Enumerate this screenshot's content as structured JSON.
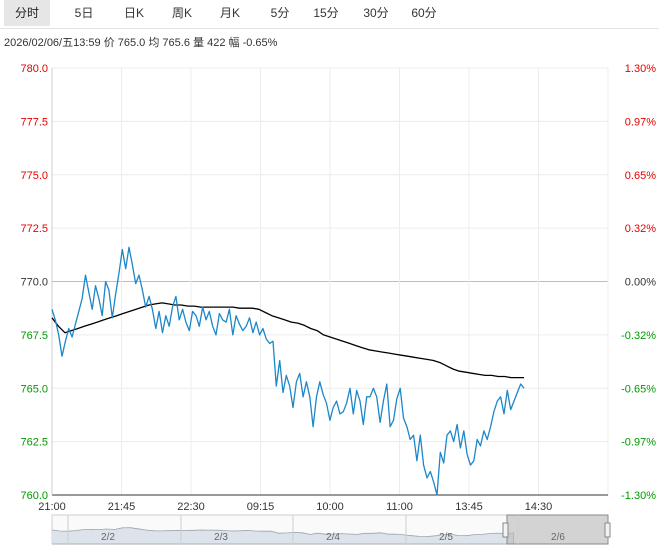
{
  "tabs": [
    {
      "label": "分时",
      "active": true
    },
    {
      "label": "5日",
      "active": false
    },
    {
      "label": "日K",
      "active": false
    },
    {
      "label": "周K",
      "active": false
    },
    {
      "label": "月K",
      "active": false
    },
    {
      "label": "5分",
      "active": false
    },
    {
      "label": "15分",
      "active": false
    },
    {
      "label": "30分",
      "active": false
    },
    {
      "label": "60分",
      "active": false
    }
  ],
  "info": {
    "datetime": "2026/02/06/五13:59",
    "price_label": "价",
    "price": "765.0",
    "avg_label": "均",
    "avg": "765.6",
    "volume_label": "量",
    "volume": "422",
    "change_label": "幅",
    "change": "-0.65%"
  },
  "colors": {
    "up": "#e60000",
    "down": "#009900",
    "flat": "#333333",
    "price_line": "#1c87c9",
    "avg_line": "#000000"
  },
  "chart_data": {
    "type": "line",
    "y_ticks_left": [
      "780.0",
      "777.5",
      "775.0",
      "772.5",
      "770.0",
      "767.5",
      "765.0",
      "762.5",
      "760.0"
    ],
    "y_ticks_right": [
      "1.30%",
      "0.97%",
      "0.65%",
      "0.32%",
      "0.00%",
      "-0.32%",
      "-0.65%",
      "-0.97%",
      "-1.30%"
    ],
    "ylim": [
      760,
      780
    ],
    "reference_price": 770.0,
    "x_ticks": [
      "21:00",
      "21:45",
      "22:30",
      "09:15",
      "10:00",
      "11:00",
      "13:45",
      "14:30"
    ],
    "x_fractions_of_session": [
      0,
      0.125,
      0.25,
      0.375,
      0.5,
      0.625,
      0.75,
      0.875
    ],
    "series": [
      {
        "values": [
          768.7,
          768.2,
          767.5,
          766.5,
          767.2,
          767.8,
          767.4,
          768.0,
          768.6,
          769.2,
          770.3,
          769.5,
          768.7,
          769.8,
          769.2,
          768.4,
          770.0,
          769.6,
          768.3,
          769.4,
          770.4,
          771.5,
          770.6,
          771.6,
          770.8,
          769.9,
          770.3,
          769.6,
          768.8,
          769.3,
          768.7,
          767.8,
          768.6,
          767.6,
          768.4,
          767.9,
          768.8,
          769.3,
          768.2,
          768.7,
          768.1,
          767.7,
          768.6,
          768.4,
          767.9,
          768.8,
          768.2,
          768.6,
          767.9,
          767.5,
          768.5,
          768.2,
          768.1,
          768.7,
          767.5,
          768.4,
          768.0,
          767.7,
          767.9,
          768.3,
          767.6,
          768.1,
          767.5,
          767.8,
          767.3,
          767.1,
          767.2,
          765.1,
          766.3,
          764.8,
          765.6,
          765.1,
          764.1,
          765.3,
          765.7,
          764.6,
          765.3,
          764.6,
          763.2,
          764.6,
          765.3,
          764.7,
          764.3,
          763.5,
          764.1,
          764.4,
          763.8,
          763.9,
          764.3,
          765.0,
          763.8,
          764.9,
          764.4,
          763.3,
          764.6,
          764.6,
          765.0,
          764.6,
          763.4,
          764.4,
          765.2,
          763.2,
          763.5,
          764.5,
          765.0,
          763.6,
          763.2,
          762.6,
          762.8,
          761.6,
          762.8,
          761.4,
          760.8,
          761.1,
          760.6,
          760.0,
          762.0,
          761.5,
          762.8,
          763.0,
          762.5,
          763.3,
          762.2,
          763.0,
          761.9,
          761.4,
          761.6,
          762.6,
          762.3,
          763.0,
          762.6,
          763.2,
          763.9,
          764.4,
          764.6,
          763.8,
          764.9,
          764.0,
          764.4,
          764.8,
          765.2,
          765.0
        ]
      },
      {
        "values": [
          768.3,
          767.9,
          767.6,
          767.7,
          767.8,
          767.9,
          768.0,
          768.1,
          768.2,
          768.3,
          768.4,
          768.5,
          768.6,
          768.7,
          768.8,
          768.9,
          768.95,
          769.0,
          768.95,
          768.9,
          768.9,
          768.85,
          768.85,
          768.8,
          768.8,
          768.8,
          768.8,
          768.8,
          768.8,
          768.75,
          768.75,
          768.75,
          768.7,
          768.55,
          768.4,
          768.3,
          768.2,
          768.1,
          768.05,
          767.95,
          767.8,
          767.7,
          767.5,
          767.4,
          767.3,
          767.2,
          767.1,
          767.0,
          766.9,
          766.8,
          766.75,
          766.7,
          766.65,
          766.6,
          766.55,
          766.5,
          766.45,
          766.4,
          766.35,
          766.3,
          766.2,
          766.05,
          765.9,
          765.8,
          765.75,
          765.7,
          765.65,
          765.6,
          765.6,
          765.55,
          765.55,
          765.5,
          765.5,
          765.5
        ]
      }
    ]
  }
}
